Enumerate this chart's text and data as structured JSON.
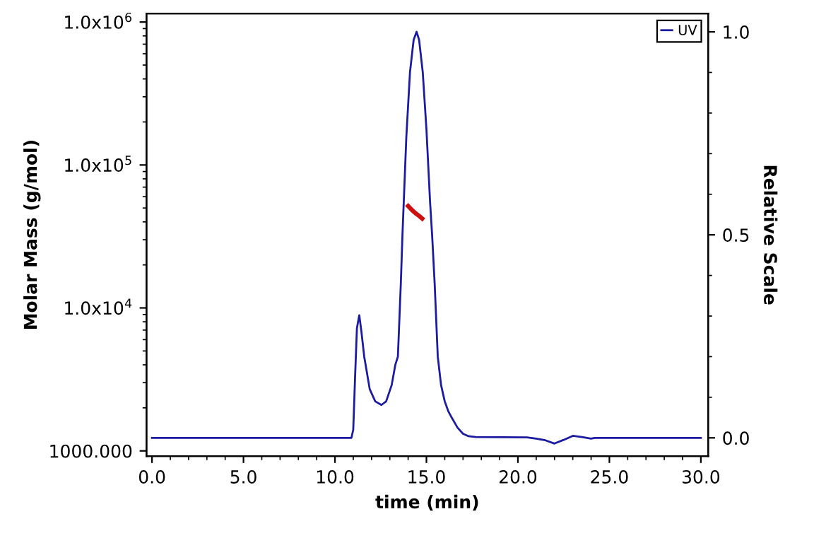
{
  "chart_data": {
    "type": "line",
    "xlabel": "time (min)",
    "ylabel": "Molar Mass (g/mol)",
    "y2label": "Relative Scale",
    "log": "y",
    "legend": "top right",
    "grid": false,
    "xlim": [
      -0.3,
      30.4
    ],
    "xticks": [
      {
        "value": 0,
        "label": "0.0"
      },
      {
        "value": 5,
        "label": "5.0"
      },
      {
        "value": 10,
        "label": "10.0"
      },
      {
        "value": 15,
        "label": "15.0"
      },
      {
        "value": 20,
        "label": "20.0"
      },
      {
        "value": 25,
        "label": "25.0"
      },
      {
        "value": 30,
        "label": "30.0"
      }
    ],
    "ylim": [
      919,
      1146000
    ],
    "yticks": [
      {
        "value": 1000,
        "label": "1000.000"
      },
      {
        "value": 10000,
        "label": "1.0x10$^{4}$"
      },
      {
        "value": 100000,
        "label": "1.0x10$^{5}$"
      },
      {
        "value": 1000000,
        "label": "1.0x10$^{6}$"
      }
    ],
    "y2lim": [
      -0.045,
      1.045
    ],
    "y2ticks": [
      {
        "value": 0,
        "label": "0.0"
      },
      {
        "value": 0.5,
        "label": "0.5"
      },
      {
        "value": 1,
        "label": "1.0"
      }
    ],
    "series": [
      {
        "name": "UV",
        "color": "#1c1ca0",
        "axis": "y2",
        "x": [
          0,
          10.9,
          11.0,
          11.1,
          11.2,
          11.33,
          11.45,
          11.6,
          11.9,
          12.2,
          12.54,
          12.8,
          13.1,
          13.3,
          13.44,
          13.6,
          13.69,
          13.9,
          14.1,
          14.3,
          14.46,
          14.6,
          14.8,
          15.0,
          15.2,
          15.31,
          15.45,
          15.62,
          15.8,
          16.0,
          16.2,
          16.38,
          16.7,
          17.0,
          17.3,
          17.7,
          20.5,
          21.0,
          21.5,
          22.0,
          22.5,
          23.0,
          23.5,
          24.0,
          24.2,
          30.0
        ],
        "values": [
          0,
          0,
          0.02,
          0.15,
          0.27,
          0.302,
          0.26,
          0.2,
          0.12,
          0.09,
          0.081,
          0.09,
          0.13,
          0.18,
          0.2,
          0.38,
          0.5,
          0.74,
          0.9,
          0.98,
          1.0,
          0.98,
          0.9,
          0.76,
          0.58,
          0.5,
          0.38,
          0.2,
          0.13,
          0.09,
          0.065,
          0.05,
          0.025,
          0.01,
          0.004,
          0.002,
          0.001,
          -0.002,
          -0.006,
          -0.014,
          -0.005,
          0.005,
          0.002,
          -0.002,
          0,
          0
        ]
      },
      {
        "color": "#cc1010",
        "axis": "y",
        "x": [
          14.0,
          14.2,
          14.4,
          14.6,
          14.77
        ],
        "values": [
          51600,
          48500,
          46000,
          44000,
          42200
        ]
      }
    ]
  }
}
